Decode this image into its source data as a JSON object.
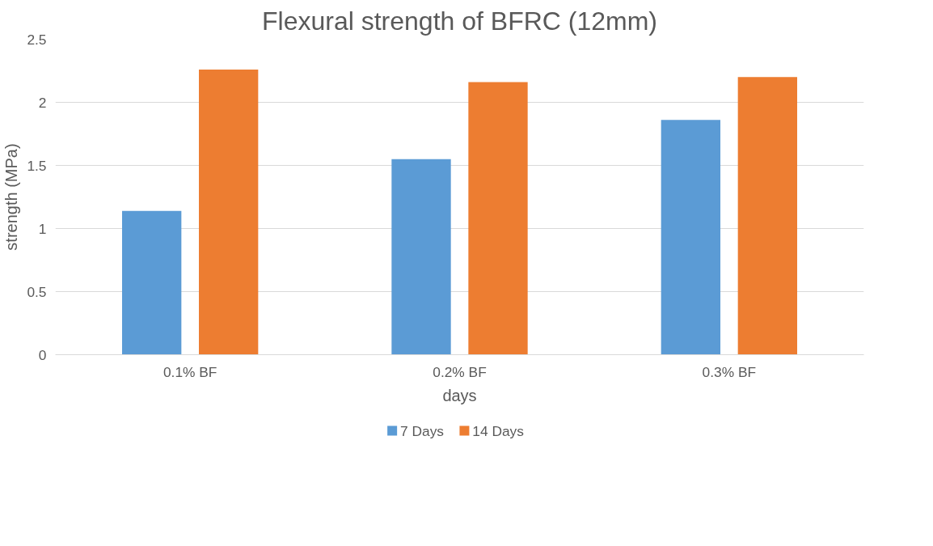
{
  "chart_data": {
    "type": "bar",
    "title": "Flexural strength of BFRC (12mm)",
    "xlabel": "days",
    "ylabel": "strength (MPa)",
    "categories": [
      "0.1% BF",
      "0.2% BF",
      "0.3% BF"
    ],
    "series": [
      {
        "name": "7 Days",
        "color": "#5b9bd5",
        "values": [
          1.14,
          1.55,
          1.86
        ]
      },
      {
        "name": "14 Days",
        "color": "#ed7d31",
        "values": [
          2.26,
          2.16,
          2.2
        ]
      }
    ],
    "ylim": [
      0,
      2.5
    ],
    "yticks": [
      0,
      0.5,
      1,
      1.5,
      2,
      2.5
    ],
    "grid": "y",
    "legend": "bottom"
  }
}
